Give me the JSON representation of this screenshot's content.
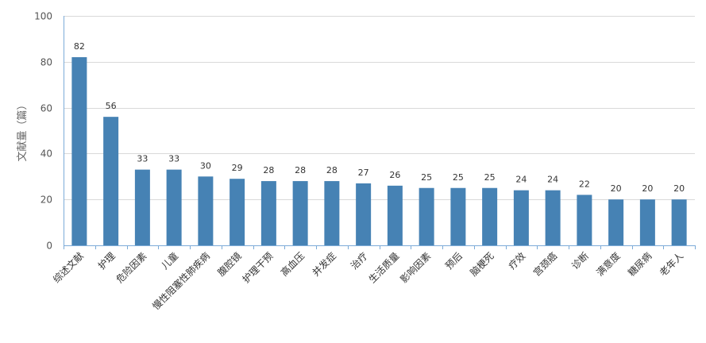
{
  "chart_data": {
    "type": "bar",
    "title": "",
    "xlabel": "",
    "ylabel": "文献量（篇）",
    "ylim": [
      0,
      100
    ],
    "yticks": [
      0,
      20,
      40,
      60,
      80,
      100
    ],
    "grid": true,
    "bar_color": "#4682b4",
    "categories": [
      "综述文献",
      "护理",
      "危险因素",
      "儿童",
      "慢性阻塞性肺疾病",
      "腹腔镜",
      "护理干预",
      "高血压",
      "并发症",
      "治疗",
      "生活质量",
      "影响因素",
      "预后",
      "脑梗死",
      "疗效",
      "宫颈癌",
      "诊断",
      "满意度",
      "糖尿病",
      "老年人"
    ],
    "values": [
      82,
      56,
      33,
      33,
      30,
      29,
      28,
      28,
      28,
      27,
      26,
      25,
      25,
      25,
      24,
      24,
      22,
      20,
      20,
      20
    ]
  }
}
